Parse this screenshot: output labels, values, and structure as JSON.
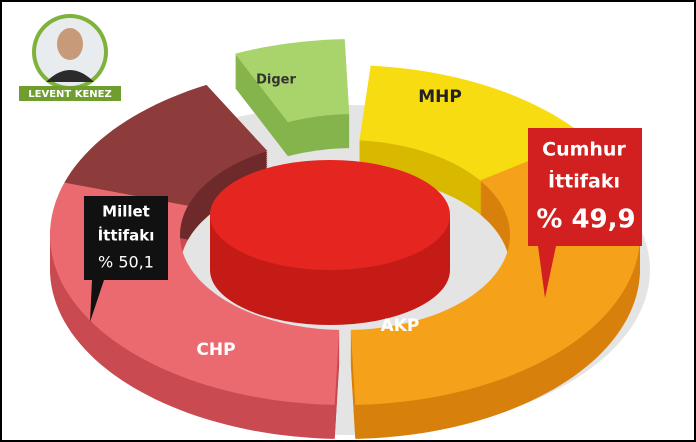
{
  "author": {
    "name": "LEVENT KENEZ"
  },
  "segments": [
    {
      "label": "MHP"
    },
    {
      "label": "AKP"
    },
    {
      "label": "CHP"
    },
    {
      "label": "Diger"
    }
  ],
  "callouts": [
    {
      "line1": "Cumhur",
      "line2": "İttifakı",
      "value": "% 49,9"
    },
    {
      "line1": "Millet",
      "line2": "İttifakı",
      "value": "% 50,1"
    }
  ]
}
